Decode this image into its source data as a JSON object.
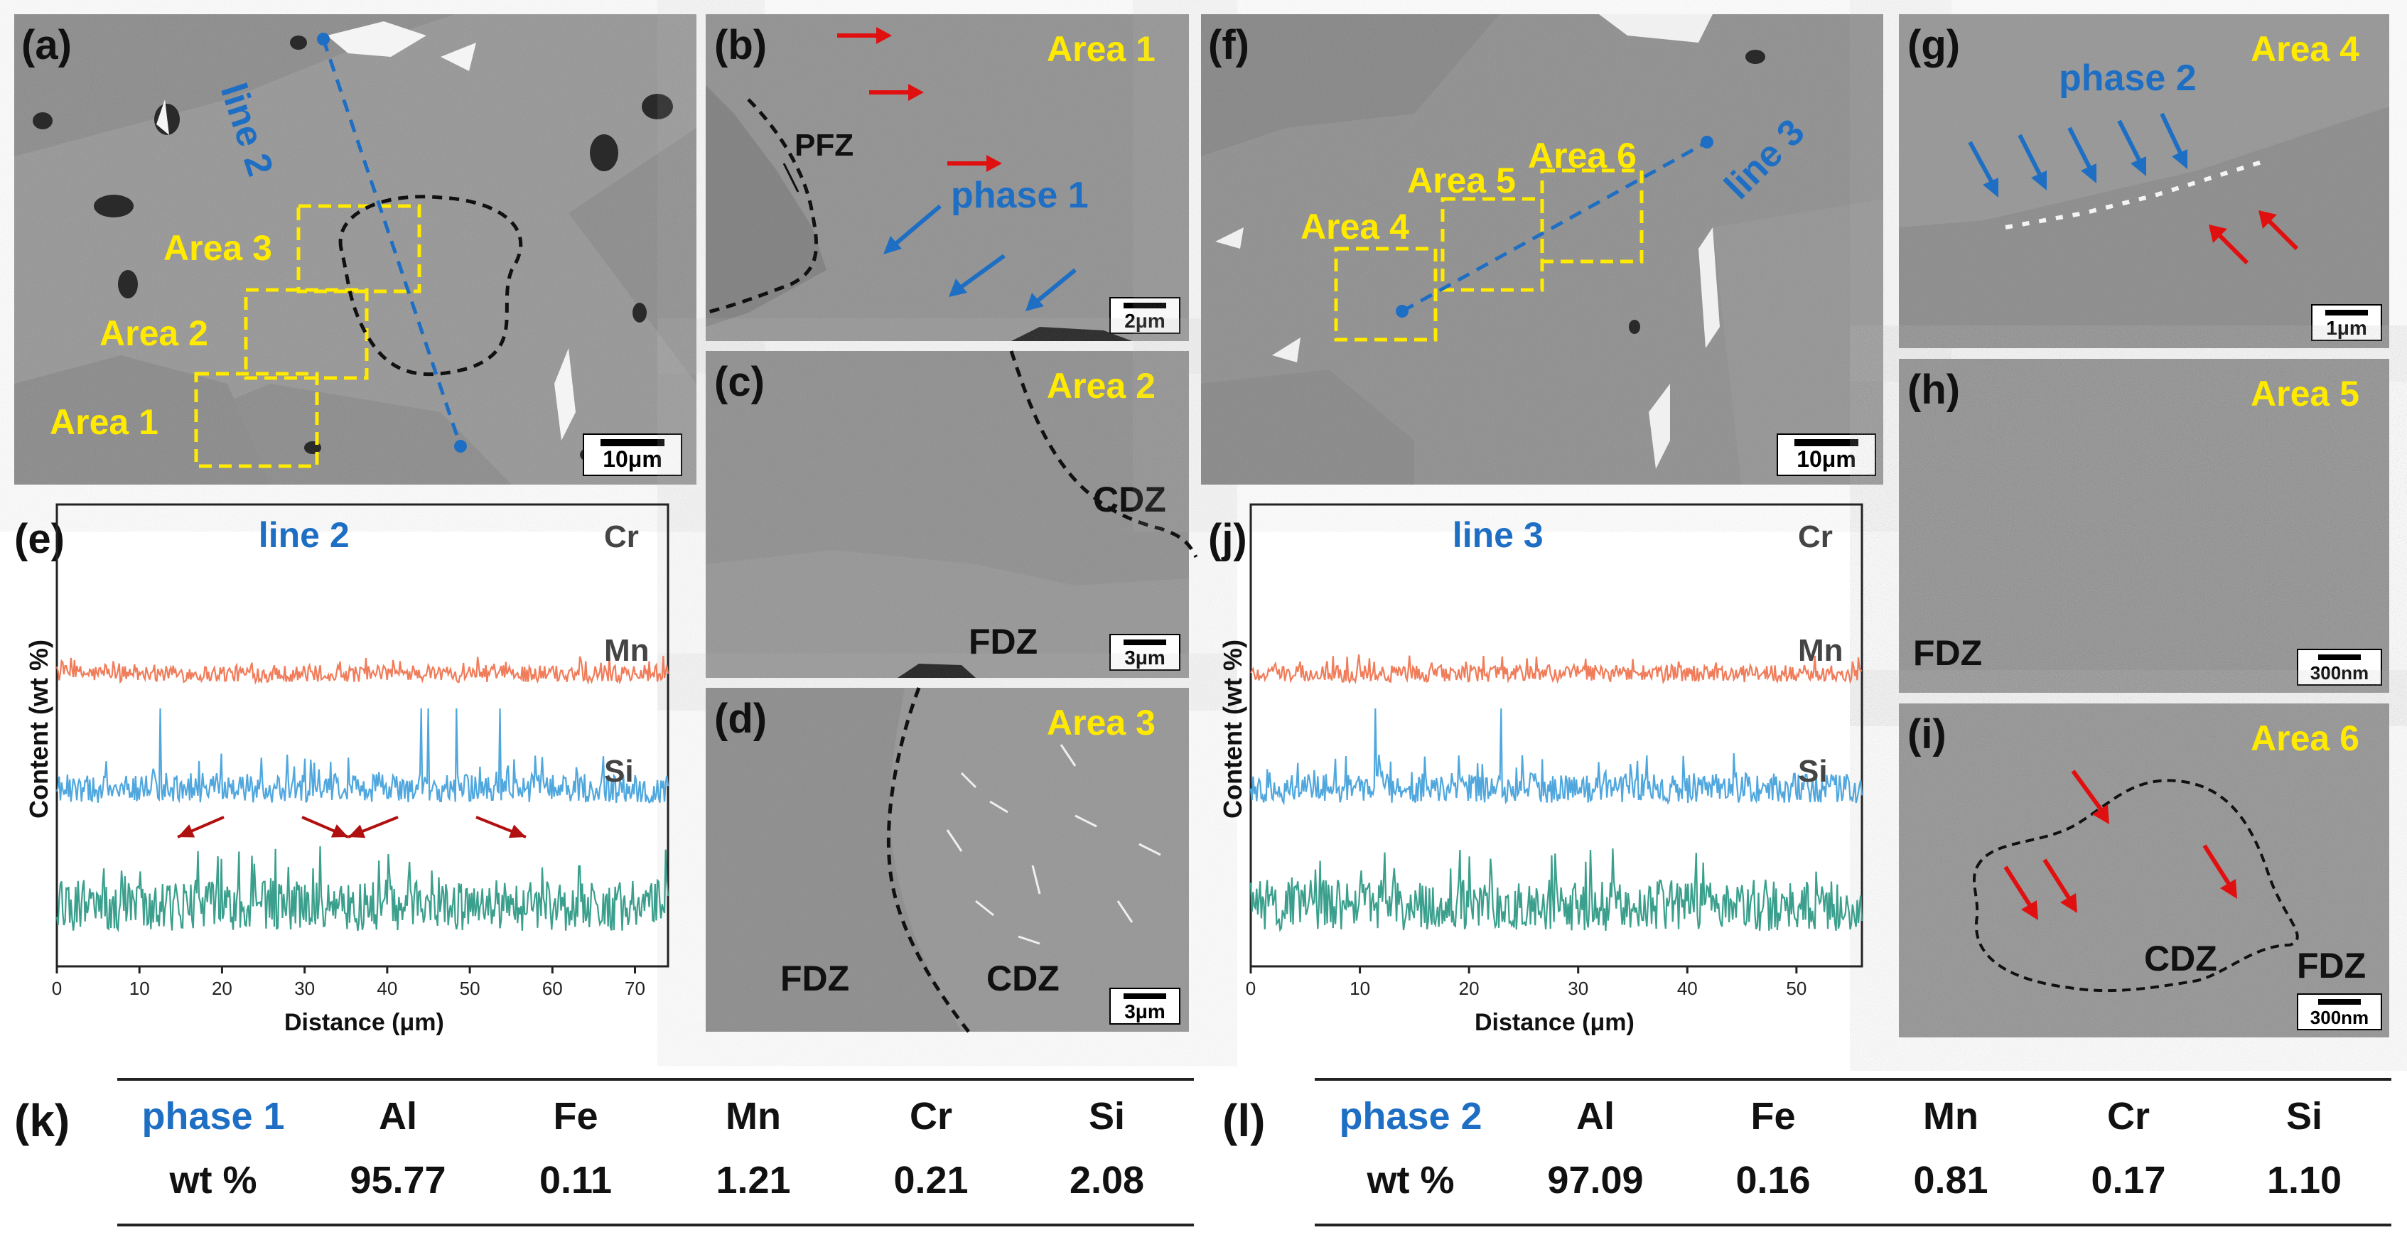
{
  "panels": {
    "a": {
      "label": "(a)",
      "areas": [
        "Area 1",
        "Area 2",
        "Area 3"
      ],
      "line": "line 2",
      "scale": "10μm"
    },
    "b": {
      "label": "(b)",
      "area": "Area 1",
      "pfz": "PFZ",
      "phase": "phase 1",
      "scale": "2μm"
    },
    "c": {
      "label": "(c)",
      "area": "Area 2",
      "cdz": "CDZ",
      "fdz": "FDZ",
      "scale": "3μm"
    },
    "d": {
      "label": "(d)",
      "area": "Area 3",
      "fdz": "FDZ",
      "cdz": "CDZ",
      "scale": "3μm"
    },
    "f": {
      "label": "(f)",
      "areas": [
        "Area 4",
        "Area 5",
        "Area 6"
      ],
      "line": "line 3",
      "scale": "10μm"
    },
    "g": {
      "label": "(g)",
      "area": "Area 4",
      "phase": "phase 2",
      "scale": "1μm"
    },
    "h": {
      "label": "(h)",
      "area": "Area 5",
      "fdz": "FDZ",
      "scale": "300nm"
    },
    "i": {
      "label": "(i)",
      "area": "Area 6",
      "cdz": "CDZ",
      "fdz": "FDZ",
      "scale": "300nm"
    }
  },
  "chart_data": [
    {
      "type": "line",
      "panel": "(e)",
      "title": "line 2",
      "xlabel": "Distance (μm)",
      "ylabel": "Content (wt %)",
      "xlim": [
        0,
        74
      ],
      "x_ticks": [
        0,
        10,
        20,
        30,
        40,
        50,
        60,
        70
      ],
      "series": [
        {
          "name": "Cr",
          "color": "#f07c5a"
        },
        {
          "name": "Mn",
          "color": "#4fa7de"
        },
        {
          "name": "Si",
          "color": "#3a9f8c"
        }
      ]
    },
    {
      "type": "line",
      "panel": "(j)",
      "title": "line 3",
      "xlabel": "Distance (μm)",
      "ylabel": "Content (wt %)",
      "xlim": [
        0,
        56
      ],
      "x_ticks": [
        0,
        10,
        20,
        30,
        40,
        50
      ],
      "series": [
        {
          "name": "Cr",
          "color": "#f07c5a"
        },
        {
          "name": "Mn",
          "color": "#4fa7de"
        },
        {
          "name": "Si",
          "color": "#3a9f8c"
        }
      ]
    }
  ],
  "tables": {
    "k": {
      "label": "(k)",
      "header": [
        "phase 1",
        "Al",
        "Fe",
        "Mn",
        "Cr",
        "Si"
      ],
      "row": [
        "wt %",
        "95.77",
        "0.11",
        "1.21",
        "0.21",
        "2.08"
      ]
    },
    "l": {
      "label": "(l)",
      "header": [
        "phase 2",
        "Al",
        "Fe",
        "Mn",
        "Cr",
        "Si"
      ],
      "row": [
        "wt %",
        "97.09",
        "0.16",
        "0.81",
        "0.17",
        "1.10"
      ]
    }
  },
  "colors": {
    "area_box": "#ffea00",
    "line_blue": "#1e6fc4",
    "arrow_red": "#e01010"
  }
}
